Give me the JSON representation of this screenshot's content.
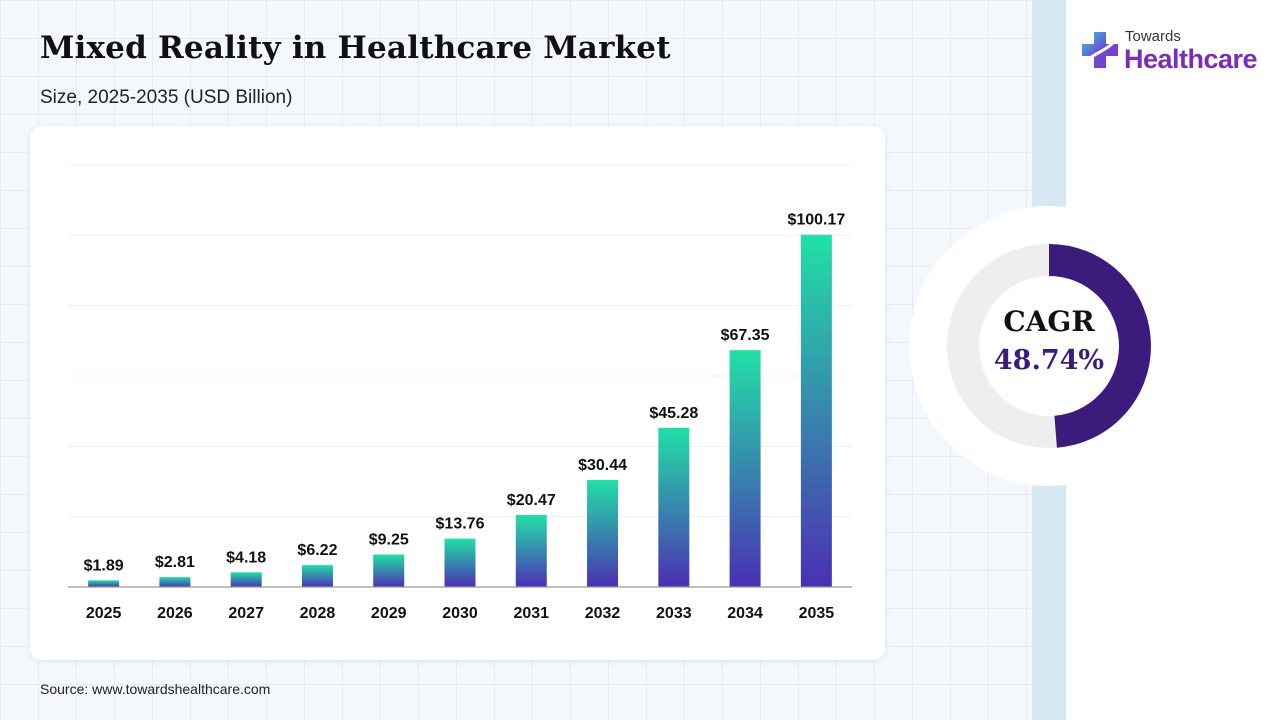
{
  "header": {
    "title": "Mixed Reality in Healthcare Market",
    "subtitle": "Size, 2025-2035 (USD Billion)"
  },
  "logo": {
    "line1": "Towards",
    "line2": "Healthcare",
    "icon": "medical-cross-icon",
    "brand_color": "#7a2db8"
  },
  "cagr": {
    "label": "CAGR",
    "value": "48.74%",
    "percent": 48.74,
    "ring_color": "#3d1b7c",
    "track_color": "#eeeeee"
  },
  "source": "Source: www.towardshealthcare.com",
  "chart_data": {
    "type": "bar",
    "title": "Mixed Reality in Healthcare Market",
    "subtitle": "Size, 2025-2035 (USD Billion)",
    "categories": [
      "2025",
      "2026",
      "2027",
      "2028",
      "2029",
      "2030",
      "2031",
      "2032",
      "2033",
      "2034",
      "2035"
    ],
    "values": [
      1.89,
      2.81,
      4.18,
      6.22,
      9.25,
      13.76,
      20.47,
      30.44,
      45.28,
      67.35,
      100.17
    ],
    "value_labels": [
      "$1.89",
      "$2.81",
      "$4.18",
      "$6.22",
      "$9.25",
      "$13.76",
      "$20.47",
      "$30.44",
      "$45.28",
      "$67.35",
      "$100.17"
    ],
    "ylim": [
      0,
      120
    ],
    "grid": true,
    "xlabel": "",
    "ylabel": "",
    "colors": {
      "bar_top": "#22e0a6",
      "bar_bottom": "#4b2fb4"
    }
  }
}
